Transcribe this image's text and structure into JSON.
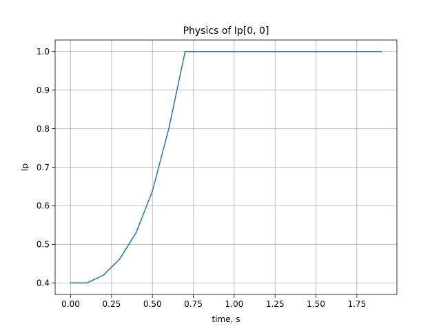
{
  "chart_data": {
    "type": "line",
    "title": "Physics of Ip[0, 0]",
    "xlabel": "time, s",
    "ylabel": "Ip",
    "xlim": [
      -0.095,
      1.995
    ],
    "ylim": [
      0.37,
      1.03
    ],
    "xticks": [
      0.0,
      0.25,
      0.5,
      0.75,
      1.0,
      1.25,
      1.5,
      1.75
    ],
    "xtick_labels": [
      "0.00",
      "0.25",
      "0.50",
      "0.75",
      "1.00",
      "1.25",
      "1.50",
      "1.75"
    ],
    "yticks": [
      0.4,
      0.5,
      0.6,
      0.7,
      0.8,
      0.9,
      1.0
    ],
    "ytick_labels": [
      "0.4",
      "0.5",
      "0.6",
      "0.7",
      "0.8",
      "0.9",
      "1.0"
    ],
    "grid": true,
    "series": [
      {
        "color": "#1f77b4",
        "x": [
          0.0,
          0.1,
          0.2,
          0.3,
          0.4,
          0.5,
          0.6,
          0.7,
          0.8,
          0.9,
          1.0,
          1.1,
          1.2,
          1.3,
          1.4,
          1.5,
          1.6,
          1.7,
          1.8,
          1.9
        ],
        "y": [
          0.4,
          0.4,
          0.42,
          0.462,
          0.53,
          0.638,
          0.8,
          1.0,
          1.0,
          1.0,
          1.0,
          1.0,
          1.0,
          1.0,
          1.0,
          1.0,
          1.0,
          1.0,
          1.0,
          1.0
        ]
      }
    ]
  }
}
